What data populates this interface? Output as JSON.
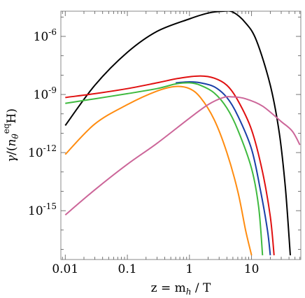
{
  "chart_data": {
    "type": "line",
    "xscale": "log",
    "yscale": "log",
    "xlim": [
      0.0085,
      62
    ],
    "ylim": [
      3e-18,
      2e-05
    ],
    "xlabel": "z = m_h / T",
    "ylabel": "γ/(n_θ^eq H)",
    "x_ticks": [
      {
        "value": 0.01,
        "label": "0.01"
      },
      {
        "value": 0.1,
        "label": "0.1"
      },
      {
        "value": 1,
        "label": "1"
      },
      {
        "value": 10,
        "label": "10"
      }
    ],
    "y_ticks": [
      {
        "value": 1e-06,
        "label": "10",
        "exp": "-6"
      },
      {
        "value": 1e-09,
        "label": "10",
        "exp": "-9"
      },
      {
        "value": 1e-12,
        "label": "10",
        "exp": "-12"
      },
      {
        "value": 1e-15,
        "label": "10",
        "exp": "-15"
      }
    ],
    "grid": false,
    "legend": "none",
    "series": [
      {
        "color": "#000000",
        "points": [
          [
            0.01,
            2.5e-11
          ],
          [
            0.03,
            3e-09
          ],
          [
            0.1,
            1.5e-07
          ],
          [
            0.3,
            1.8e-06
          ],
          [
            1,
            8e-06
          ],
          [
            2,
            1.6e-05
          ],
          [
            3.5,
            2e-05
          ],
          [
            5,
            1.8e-05
          ],
          [
            8,
            5e-06
          ],
          [
            12,
            6e-07
          ],
          [
            20,
            3e-09
          ],
          [
            28,
            1e-11
          ],
          [
            35,
            1.5e-14
          ],
          [
            42,
            5e-18
          ]
        ]
      },
      {
        "color": "#e01010",
        "points": [
          [
            0.01,
            7e-10
          ],
          [
            0.03,
            1.1e-09
          ],
          [
            0.1,
            2e-09
          ],
          [
            0.3,
            4e-09
          ],
          [
            0.7,
            7e-09
          ],
          [
            1.5,
            9e-09
          ],
          [
            2.5,
            7e-09
          ],
          [
            4,
            3e-09
          ],
          [
            6,
            5e-10
          ],
          [
            10,
            1.5e-11
          ],
          [
            15,
            1e-13
          ],
          [
            20,
            5e-16
          ],
          [
            23,
            5e-18
          ]
        ]
      },
      {
        "color": "#1a3fa8",
        "points": [
          [
            0.6,
            4e-09
          ],
          [
            1,
            4.5e-09
          ],
          [
            1.5,
            4e-09
          ],
          [
            2.5,
            2.5e-09
          ],
          [
            4,
            7e-10
          ],
          [
            6,
            8e-11
          ],
          [
            10,
            1.5e-12
          ],
          [
            14,
            1e-14
          ],
          [
            18,
            1e-16
          ],
          [
            20,
            5e-18
          ]
        ]
      },
      {
        "color": "#3fba3f",
        "points": [
          [
            0.01,
            3.5e-10
          ],
          [
            0.03,
            6e-10
          ],
          [
            0.1,
            1.1e-09
          ],
          [
            0.3,
            2e-09
          ],
          [
            0.6,
            3.5e-09
          ],
          [
            1,
            4e-09
          ],
          [
            1.5,
            3e-09
          ],
          [
            2.5,
            1.2e-09
          ],
          [
            4,
            2e-10
          ],
          [
            6,
            1.5e-11
          ],
          [
            10,
            1.5e-13
          ],
          [
            13,
            1.5e-15
          ],
          [
            15,
            5e-18
          ]
        ]
      },
      {
        "color": "#ff8c10",
        "points": [
          [
            0.01,
            8e-13
          ],
          [
            0.03,
            3e-11
          ],
          [
            0.1,
            3e-10
          ],
          [
            0.3,
            1.5e-09
          ],
          [
            0.6,
            2.6e-09
          ],
          [
            1,
            2e-09
          ],
          [
            1.5,
            7e-10
          ],
          [
            2.5,
            5e-11
          ],
          [
            4,
            1e-12
          ],
          [
            6,
            1e-14
          ],
          [
            8,
            1e-16
          ],
          [
            10,
            5e-18
          ]
        ]
      },
      {
        "color": "#cc6699",
        "points": [
          [
            0.01,
            6e-16
          ],
          [
            0.03,
            1.2e-14
          ],
          [
            0.1,
            2.5e-13
          ],
          [
            0.3,
            3e-12
          ],
          [
            1,
            6e-11
          ],
          [
            2,
            3e-10
          ],
          [
            3.5,
            7e-10
          ],
          [
            5,
            7.5e-10
          ],
          [
            8,
            6e-10
          ],
          [
            15,
            2.5e-10
          ],
          [
            30,
            4e-11
          ],
          [
            45,
            1.3e-11
          ],
          [
            60,
            2.5e-12
          ]
        ]
      }
    ]
  }
}
